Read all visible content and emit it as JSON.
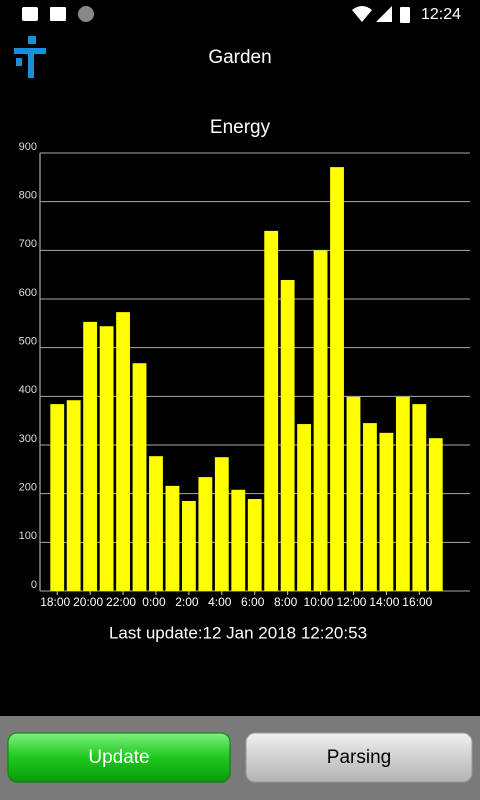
{
  "status_bar": {
    "time": "12:24"
  },
  "header": {
    "title": "Garden"
  },
  "chart_data": {
    "type": "bar",
    "title": "Energy",
    "categories": [
      "18:00",
      null,
      "20:00",
      null,
      "22:00",
      null,
      "0:00",
      null,
      "2:00",
      null,
      "4:00",
      null,
      "6:00",
      null,
      "8:00",
      null,
      "10:00",
      null,
      "12:00",
      null,
      "14:00",
      null,
      "16:00",
      null
    ],
    "values": [
      384,
      392,
      553,
      544,
      573,
      468,
      277,
      216,
      185,
      234,
      275,
      208,
      189,
      740,
      639,
      343,
      700,
      871,
      399,
      345,
      325,
      399,
      384,
      314
    ],
    "color": "#ffff00",
    "ylim": [
      0,
      900
    ],
    "yticks": [
      0,
      100,
      200,
      300,
      400,
      500,
      600,
      700,
      800,
      900
    ],
    "grid": true
  },
  "last_update": "Last update:12 Jan 2018 12:20:53",
  "buttons": [
    "Update",
    "Parsing"
  ]
}
